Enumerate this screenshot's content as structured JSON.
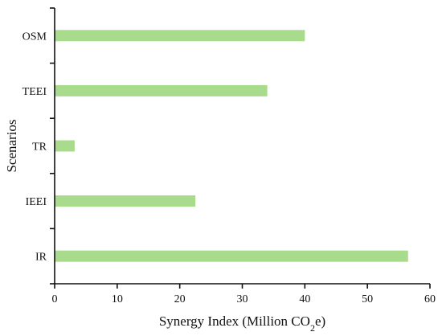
{
  "chart_data": {
    "type": "bar",
    "orientation": "horizontal",
    "categories": [
      "IR",
      "IEEI",
      "TR",
      "TEEI",
      "OSM"
    ],
    "values": [
      56.5,
      22.5,
      3.2,
      34.0,
      40.0
    ],
    "title": "",
    "xlabel_prefix": "Synergy Index (Million CO",
    "xlabel_subscript": "2",
    "xlabel_suffix": "e)",
    "ylabel": "Scenarios",
    "xlim": [
      0,
      60
    ],
    "xticks": [
      0,
      10,
      20,
      30,
      40,
      50,
      60
    ],
    "grid": false,
    "legend": "none",
    "bar_color": "#a8dc8c"
  }
}
